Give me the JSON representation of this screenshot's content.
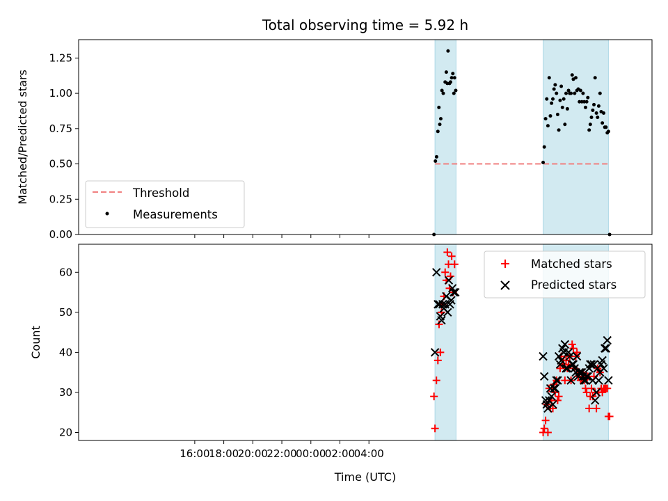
{
  "colors": {
    "shade": "#add8e6",
    "threshold": "#f08080",
    "measurement": "#000000",
    "matched": "#ff0000",
    "predicted": "#000000"
  },
  "chart_data": [
    {
      "type": "scatter",
      "title": "Total observing time = 5.92 h",
      "ylabel": "Matched/Predicted stars",
      "xlim": [
        -8,
        31.5
      ],
      "ylim": [
        0,
        1.38
      ],
      "x_unit": "hours since 16:00 UTC",
      "yticks": [
        0.0,
        0.25,
        0.5,
        0.75,
        1.0,
        1.25
      ],
      "ytick_labels": [
        "0.00",
        "0.25",
        "0.50",
        "0.75",
        "1.00",
        "1.25"
      ],
      "shaded_spans": [
        [
          16.55,
          18.0
        ],
        [
          24.0,
          28.5
        ]
      ],
      "threshold": {
        "label": "Threshold",
        "value": 0.5,
        "x_range": [
          16.55,
          28.5
        ],
        "style": "dashed"
      },
      "legend": {
        "position": "lower-left",
        "entries": [
          "Threshold",
          "Measurements"
        ]
      },
      "series": [
        {
          "name": "Measurements",
          "marker": "dot",
          "points": [
            [
              16.48,
              0.0
            ],
            [
              16.58,
              0.52
            ],
            [
              16.66,
              0.55
            ],
            [
              16.75,
              0.73
            ],
            [
              16.82,
              0.9
            ],
            [
              16.88,
              0.78
            ],
            [
              16.95,
              0.82
            ],
            [
              17.03,
              1.02
            ],
            [
              17.12,
              1.0
            ],
            [
              17.25,
              1.08
            ],
            [
              17.33,
              1.15
            ],
            [
              17.4,
              1.07
            ],
            [
              17.45,
              1.3
            ],
            [
              17.55,
              1.07
            ],
            [
              17.62,
              1.08
            ],
            [
              17.7,
              1.11
            ],
            [
              17.78,
              1.14
            ],
            [
              17.85,
              1.0
            ],
            [
              17.9,
              1.11
            ],
            [
              17.98,
              1.02
            ],
            [
              24.0,
              0.51
            ],
            [
              24.08,
              0.62
            ],
            [
              24.17,
              0.82
            ],
            [
              24.25,
              0.96
            ],
            [
              24.33,
              0.77
            ],
            [
              24.42,
              1.11
            ],
            [
              24.5,
              0.84
            ],
            [
              24.58,
              0.93
            ],
            [
              24.67,
              0.96
            ],
            [
              24.75,
              1.03
            ],
            [
              24.83,
              1.06
            ],
            [
              24.92,
              1.0
            ],
            [
              25.0,
              0.85
            ],
            [
              25.08,
              0.74
            ],
            [
              25.17,
              0.95
            ],
            [
              25.25,
              1.05
            ],
            [
              25.33,
              0.9
            ],
            [
              25.42,
              0.96
            ],
            [
              25.5,
              0.78
            ],
            [
              25.58,
              1.0
            ],
            [
              25.67,
              0.89
            ],
            [
              25.75,
              1.02
            ],
            [
              25.83,
              1.0
            ],
            [
              25.92,
              1.0
            ],
            [
              26.0,
              1.13
            ],
            [
              26.08,
              1.1
            ],
            [
              26.17,
              1.0
            ],
            [
              26.25,
              1.11
            ],
            [
              26.33,
              1.02
            ],
            [
              26.42,
              1.03
            ],
            [
              26.5,
              0.94
            ],
            [
              26.58,
              1.02
            ],
            [
              26.67,
              0.94
            ],
            [
              26.75,
              1.0
            ],
            [
              26.83,
              0.94
            ],
            [
              26.92,
              0.9
            ],
            [
              27.0,
              0.94
            ],
            [
              27.08,
              0.97
            ],
            [
              27.17,
              0.74
            ],
            [
              27.25,
              0.78
            ],
            [
              27.33,
              0.83
            ],
            [
              27.42,
              0.88
            ],
            [
              27.5,
              0.92
            ],
            [
              27.58,
              1.11
            ],
            [
              27.67,
              0.86
            ],
            [
              27.75,
              0.83
            ],
            [
              27.83,
              0.91
            ],
            [
              27.92,
              1.0
            ],
            [
              28.0,
              0.87
            ],
            [
              28.08,
              0.79
            ],
            [
              28.17,
              0.86
            ],
            [
              28.25,
              0.76
            ],
            [
              28.33,
              0.76
            ],
            [
              28.42,
              0.72
            ],
            [
              28.5,
              0.73
            ],
            [
              28.58,
              0.0
            ]
          ]
        }
      ]
    },
    {
      "type": "scatter",
      "ylabel": "Count",
      "xlabel": "Time (UTC)",
      "xlim": [
        -8,
        31.5
      ],
      "ylim": [
        18,
        67
      ],
      "x_unit": "hours since 16:00 UTC",
      "yticks": [
        20,
        30,
        40,
        50,
        60
      ],
      "ytick_labels": [
        "20",
        "30",
        "40",
        "50",
        "60"
      ],
      "xticks": [
        0,
        2,
        4,
        6,
        8,
        10,
        12
      ],
      "xtick_labels": [
        "16:00",
        "18:00",
        "20:00",
        "22:00",
        "00:00",
        "02:00",
        "04:00"
      ],
      "shaded_spans": [
        [
          16.55,
          18.0
        ],
        [
          24.0,
          28.5
        ]
      ],
      "legend": {
        "position": "upper-right",
        "entries": [
          "Matched stars",
          "Predicted stars"
        ]
      },
      "series": [
        {
          "name": "Matched stars",
          "marker": "plus",
          "points": [
            [
              16.48,
              29
            ],
            [
              16.55,
              21
            ],
            [
              16.65,
              33
            ],
            [
              16.75,
              38
            ],
            [
              16.83,
              47
            ],
            [
              16.92,
              40
            ],
            [
              17.0,
              50
            ],
            [
              17.08,
              52
            ],
            [
              17.17,
              54
            ],
            [
              17.25,
              60
            ],
            [
              17.33,
              58
            ],
            [
              17.4,
              65
            ],
            [
              17.48,
              62
            ],
            [
              17.55,
              56
            ],
            [
              17.62,
              59
            ],
            [
              17.7,
              64
            ],
            [
              17.8,
              55
            ],
            [
              17.9,
              62
            ],
            [
              24.0,
              20
            ],
            [
              24.08,
              21
            ],
            [
              24.17,
              23
            ],
            [
              24.25,
              27
            ],
            [
              24.33,
              20
            ],
            [
              24.42,
              31
            ],
            [
              24.5,
              26
            ],
            [
              24.58,
              28
            ],
            [
              24.67,
              26
            ],
            [
              24.75,
              32
            ],
            [
              24.83,
              30
            ],
            [
              24.92,
              33
            ],
            [
              25.0,
              28
            ],
            [
              25.08,
              29
            ],
            [
              25.17,
              36
            ],
            [
              25.25,
              39
            ],
            [
              25.33,
              37
            ],
            [
              25.42,
              38
            ],
            [
              25.5,
              33
            ],
            [
              25.58,
              38
            ],
            [
              25.67,
              36
            ],
            [
              25.75,
              37
            ],
            [
              25.83,
              39
            ],
            [
              25.92,
              33
            ],
            [
              26.0,
              42
            ],
            [
              26.08,
              41
            ],
            [
              26.17,
              36
            ],
            [
              26.25,
              39
            ],
            [
              26.33,
              40
            ],
            [
              26.42,
              34
            ],
            [
              26.5,
              35
            ],
            [
              26.58,
              33
            ],
            [
              26.67,
              33
            ],
            [
              26.75,
              35
            ],
            [
              26.83,
              33
            ],
            [
              26.92,
              31
            ],
            [
              27.0,
              30
            ],
            [
              27.08,
              34
            ],
            [
              27.17,
              26
            ],
            [
              27.25,
              29
            ],
            [
              27.33,
              31
            ],
            [
              27.42,
              29
            ],
            [
              27.5,
              34
            ],
            [
              27.58,
              30
            ],
            [
              27.67,
              26
            ],
            [
              27.75,
              36
            ],
            [
              27.83,
              30
            ],
            [
              27.92,
              35
            ],
            [
              28.0,
              31
            ],
            [
              28.08,
              30
            ],
            [
              28.17,
              31
            ],
            [
              28.25,
              31
            ],
            [
              28.33,
              31
            ],
            [
              28.42,
              31
            ],
            [
              28.5,
              24
            ],
            [
              28.58,
              24
            ]
          ]
        },
        {
          "name": "Predicted stars",
          "marker": "x",
          "points": [
            [
              16.55,
              40
            ],
            [
              16.65,
              60
            ],
            [
              16.75,
              52
            ],
            [
              16.85,
              52
            ],
            [
              16.92,
              49
            ],
            [
              17.0,
              48
            ],
            [
              17.08,
              52
            ],
            [
              17.17,
              51
            ],
            [
              17.25,
              52
            ],
            [
              17.33,
              54
            ],
            [
              17.42,
              50
            ],
            [
              17.5,
              58
            ],
            [
              17.58,
              52
            ],
            [
              17.67,
              53
            ],
            [
              17.75,
              56
            ],
            [
              17.85,
              55
            ],
            [
              17.95,
              55
            ],
            [
              24.0,
              39
            ],
            [
              24.08,
              34
            ],
            [
              24.17,
              28
            ],
            [
              24.25,
              27
            ],
            [
              24.33,
              26
            ],
            [
              24.42,
              28
            ],
            [
              24.5,
              31
            ],
            [
              24.58,
              29
            ],
            [
              24.67,
              27
            ],
            [
              24.75,
              31
            ],
            [
              24.83,
              31
            ],
            [
              24.92,
              33
            ],
            [
              25.0,
              33
            ],
            [
              25.08,
              39
            ],
            [
              25.17,
              37
            ],
            [
              25.25,
              38
            ],
            [
              25.33,
              41
            ],
            [
              25.42,
              40
            ],
            [
              25.5,
              42
            ],
            [
              25.58,
              36
            ],
            [
              25.67,
              36
            ],
            [
              25.75,
              40
            ],
            [
              25.83,
              39
            ],
            [
              25.92,
              33
            ],
            [
              26.0,
              37
            ],
            [
              26.08,
              37
            ],
            [
              26.17,
              36
            ],
            [
              26.25,
              35
            ],
            [
              26.33,
              39
            ],
            [
              26.42,
              34
            ],
            [
              26.5,
              35
            ],
            [
              26.58,
              35
            ],
            [
              26.67,
              35
            ],
            [
              26.75,
              34
            ],
            [
              26.83,
              33
            ],
            [
              26.92,
              33
            ],
            [
              27.0,
              34
            ],
            [
              27.08,
              34
            ],
            [
              27.17,
              36
            ],
            [
              27.25,
              37
            ],
            [
              27.33,
              37
            ],
            [
              27.42,
              33
            ],
            [
              27.5,
              37
            ],
            [
              27.58,
              28
            ],
            [
              27.67,
              30
            ],
            [
              27.75,
              36
            ],
            [
              27.83,
              33
            ],
            [
              27.92,
              35
            ],
            [
              28.0,
              37
            ],
            [
              28.08,
              38
            ],
            [
              28.17,
              36
            ],
            [
              28.25,
              41
            ],
            [
              28.33,
              41
            ],
            [
              28.42,
              43
            ],
            [
              28.5,
              33
            ]
          ]
        }
      ]
    }
  ]
}
